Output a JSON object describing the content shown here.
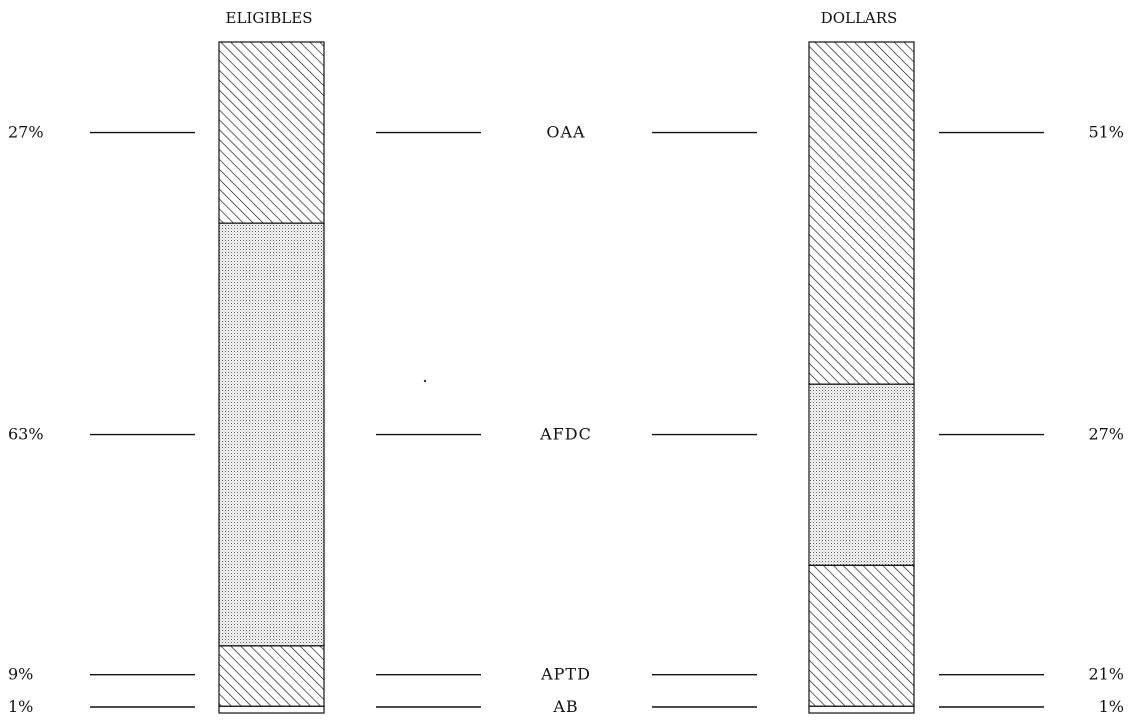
{
  "chart_data": {
    "type": "bar",
    "stacked": true,
    "unit": "%",
    "categories": [
      "OAA",
      "AFDC",
      "APTD",
      "AB"
    ],
    "series": [
      {
        "name": "ELIGIBLES",
        "values": [
          27,
          63,
          9,
          1
        ],
        "labels": [
          "27%",
          "63%",
          "9%",
          "1%"
        ]
      },
      {
        "name": "DOLLARS",
        "values": [
          51,
          27,
          21,
          1
        ],
        "labels": [
          "51%",
          "27%",
          "21%",
          "1%"
        ]
      }
    ],
    "segment_fills": {
      "OAA": "diagonal-hatch",
      "AFDC": "dot-stipple",
      "APTD": "diagonal-hatch",
      "AB": "blank"
    },
    "ylim": [
      0,
      100
    ],
    "grid": false,
    "legend": "none"
  }
}
